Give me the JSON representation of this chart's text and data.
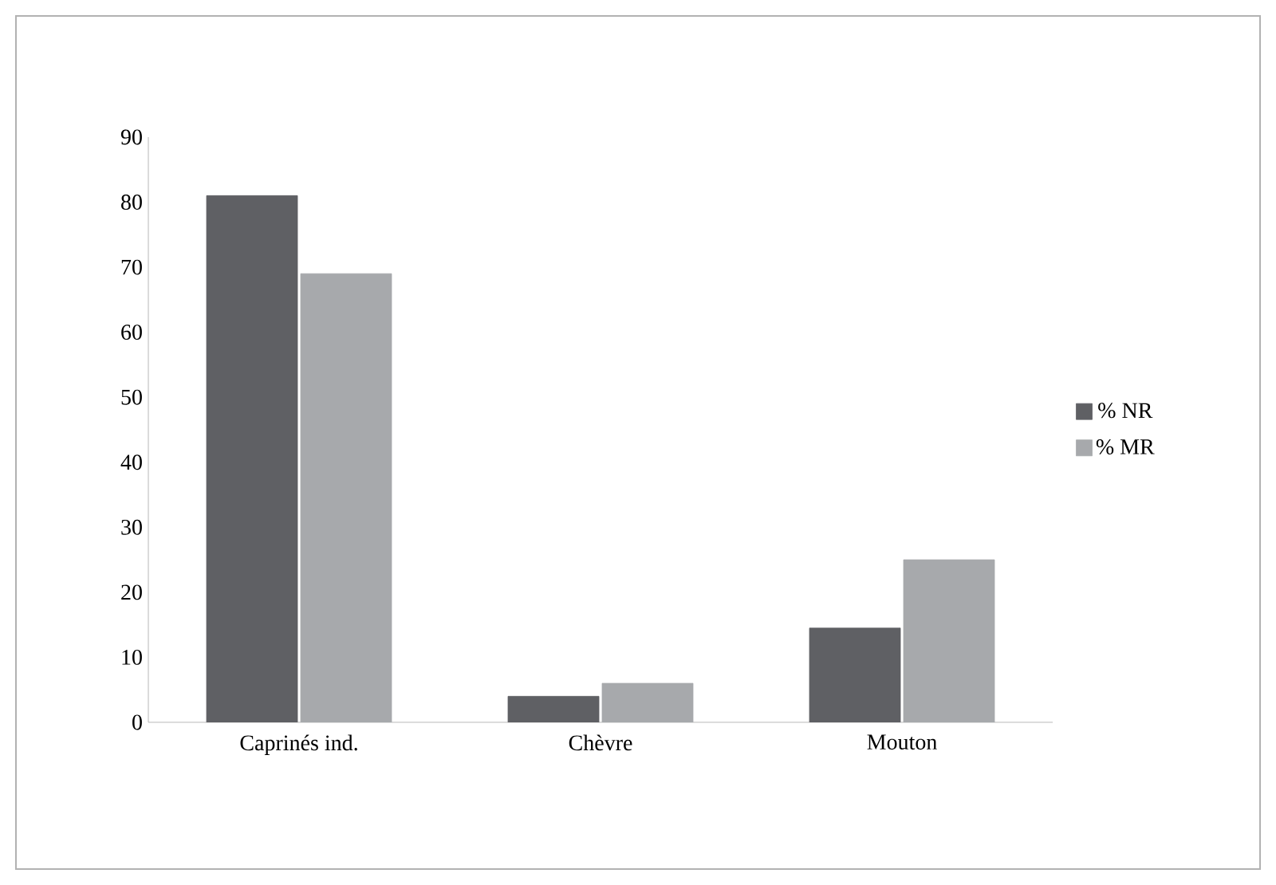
{
  "chart_data": {
    "type": "bar",
    "categories": [
      "Caprinés ind.",
      "Chèvre",
      "Mouton"
    ],
    "series": [
      {
        "name": "% NR",
        "color": "#5f6064",
        "values": [
          81,
          4,
          14.5
        ]
      },
      {
        "name": "% MR",
        "color": "#a7a9ac",
        "values": [
          69,
          6,
          25
        ]
      }
    ],
    "ylim": [
      0,
      90
    ],
    "yticks": [
      0,
      10,
      20,
      30,
      40,
      50,
      60,
      70,
      80,
      90
    ],
    "grid": false,
    "legend": "right"
  }
}
